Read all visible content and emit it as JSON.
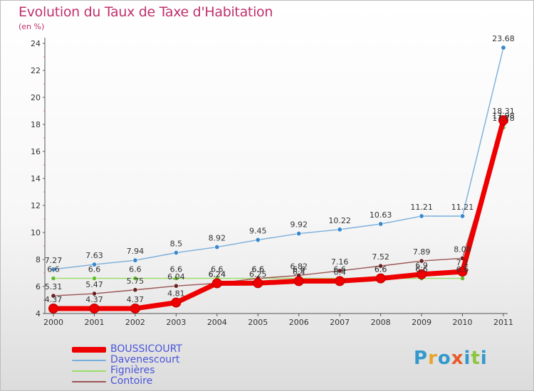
{
  "title": "Evolution du Taux de Taxe d'Habitation",
  "unit_label": "(en %)",
  "logo": {
    "text": "Proxiti",
    "letters": [
      {
        "ch": "P",
        "color": "#3399cc"
      },
      {
        "ch": "r",
        "color": "#e8a52a"
      },
      {
        "ch": "o",
        "color": "#3399cc"
      },
      {
        "ch": "x",
        "color": "#e85a2a"
      },
      {
        "ch": "i",
        "color": "#3399cc"
      },
      {
        "ch": "t",
        "color": "#8cc63f"
      },
      {
        "ch": "i",
        "color": "#3399cc"
      }
    ]
  },
  "chart_data": {
    "type": "line",
    "title": "Evolution du Taux de Taxe d'Habitation",
    "ylabel": "(en %)",
    "xlabel": "",
    "x": [
      "2000",
      "2001",
      "2002",
      "2003",
      "2004",
      "2005",
      "2006",
      "2007",
      "2008",
      "2009",
      "2010",
      "2011"
    ],
    "ylim": [
      4,
      24
    ],
    "yticks": [
      "4",
      "6",
      "8",
      "10",
      "12",
      "14",
      "16",
      "18",
      "20",
      "22",
      "24"
    ],
    "legend_position": "bottom-left",
    "series": [
      {
        "name": "BOUSSICOURT",
        "color": "#ee0000",
        "marker": "#ee0000",
        "values": [
          4.37,
          4.37,
          4.37,
          4.81,
          6.24,
          6.25,
          6.4,
          6.4,
          6.6,
          6.9,
          7.1,
          18.31
        ],
        "labels": [
          "4.37",
          "4.37",
          "4.37",
          "4.81",
          "6.24",
          "6.25",
          "6.4",
          "6.4",
          "6.6",
          "6.9",
          "7.1",
          "18.31"
        ]
      },
      {
        "name": "Davenescourt",
        "color": "#7aaedb",
        "marker": "#3a88cc",
        "values": [
          7.27,
          7.63,
          7.94,
          8.5,
          8.92,
          9.45,
          9.92,
          10.22,
          10.63,
          11.21,
          11.21,
          23.68
        ],
        "labels": [
          "7.27",
          "7.63",
          "7.94",
          "8.5",
          "8.92",
          "9.45",
          "9.92",
          "10.22",
          "10.63",
          "11.21",
          "11.21",
          "23.68"
        ]
      },
      {
        "name": "Fignières",
        "color": "#99dd66",
        "marker": "#66bb33",
        "values": [
          6.6,
          6.6,
          6.6,
          6.6,
          6.6,
          6.6,
          6.6,
          6.6,
          6.6,
          6.6,
          6.6,
          17.78
        ],
        "labels": [
          "6.6",
          "6.6",
          "6.6",
          "6.6",
          "6.6",
          "6.6",
          "6.6",
          "6.6",
          "6.6",
          "6.6",
          "6.6",
          "17.78"
        ]
      },
      {
        "name": "Contoire",
        "color": "#9b5454",
        "marker": "#6b2323",
        "values": [
          5.31,
          5.47,
          5.75,
          6.04,
          6.24,
          6.6,
          6.82,
          7.16,
          7.52,
          7.89,
          8.09,
          17.98
        ],
        "labels": [
          "5.31",
          "5.47",
          "5.75",
          "6.04",
          "6.24",
          "6.6",
          "6.82",
          "7.16",
          "7.52",
          "7.89",
          "8.09",
          "17.98"
        ]
      }
    ]
  }
}
